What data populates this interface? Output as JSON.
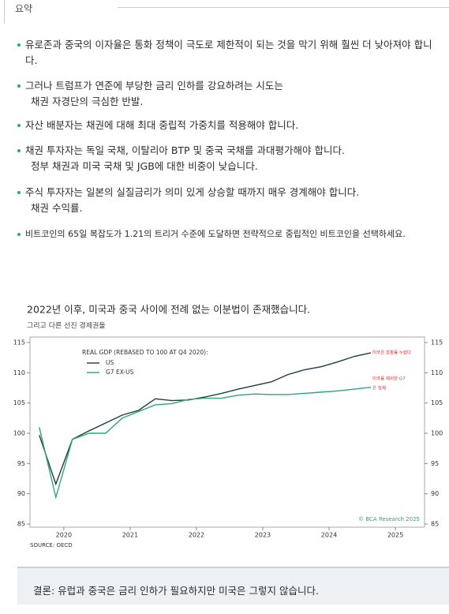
{
  "summary": {
    "heading": "요약",
    "bullets": [
      [
        "유로존과 중국의 이자율은 통화 정책이 극도로 제한적이 되는 것을 막기 위해 훨씬 더 낮아져야 합니다."
      ],
      [
        "그러나 트럼프가 연준에 부당한 금리 인하를 강요하려는 시도는",
        "채권 자경단의 극심한 반발."
      ],
      [
        "자산 배분자는 채권에 대해 최대 중립적 가중치를 적용해야 합니다."
      ],
      [
        "채권 투자자는 독일 국채, 이탈리아 BTP 및 중국 국채를 과대평가해야 합니다.",
        "정부 채권과 미국 국채 및 JGB에 대한 비중이 낮습니다."
      ],
      [
        "주식 투자자는 일본의 실질금리가 의미 있게 상승할 때까지 매우 경계해야 합니다.",
        "채권 수익률."
      ],
      [
        "비트코인의 65일 복잡도가 1.21의 트리거 수준에 도달하면 전략적으로 중립적인 비트코인을 선택하세요."
      ]
    ]
  },
  "chart_data": {
    "type": "line",
    "title": "2022년 이후, 미국과 중국 사이에 전례 없는 이분법이 존재했습니다.",
    "subtitle": "그리고 다른 선진 경제권들",
    "legend_title": "REAL GDP (REBASED TO 100 AT Q4 2020):",
    "source": "SOURCE: OECD",
    "credit": "© BCA Research 2025",
    "annotations": [
      "미국은 호황을 누렸다",
      "미국을 제외한 G7",
      "은 정체"
    ],
    "x": [
      2020.13,
      2020.38,
      2020.63,
      2020.88,
      2021.13,
      2021.38,
      2021.63,
      2021.88,
      2022.13,
      2022.38,
      2022.63,
      2022.88,
      2023.13,
      2023.38,
      2023.63,
      2023.88,
      2024.13,
      2024.38,
      2024.63,
      2024.88,
      2025.13
    ],
    "series": [
      {
        "name": "US",
        "color": "#1e3d3b",
        "values": [
          99.7,
          91.6,
          99,
          100.4,
          101.7,
          103,
          103.8,
          105.7,
          105.4,
          105.5,
          106,
          106.6,
          107.3,
          107.9,
          108.5,
          109.7,
          110.5,
          111,
          111.8,
          112.7,
          113.3
        ]
      },
      {
        "name": "G7 EX-US",
        "color": "#2fa57c",
        "values": [
          101,
          89.4,
          99,
          100,
          100,
          102.5,
          103.6,
          104.7,
          104.9,
          105.6,
          105.8,
          105.8,
          106.3,
          106.5,
          106.4,
          106.4,
          106.6,
          106.8,
          107,
          107.3,
          107.6
        ]
      }
    ],
    "xlim": [
      2019.99,
      2025.94
    ],
    "xticks": [
      {
        "value": 2020.5,
        "label": "2020"
      },
      {
        "value": 2021.5,
        "label": "2021"
      },
      {
        "value": 2022.5,
        "label": "2022"
      },
      {
        "value": 2023.5,
        "label": "2023"
      },
      {
        "value": 2024.5,
        "label": "2024"
      },
      {
        "value": 2025.5,
        "label": "2025"
      }
    ],
    "ylim": [
      85,
      115
    ],
    "yticks": [
      85,
      90,
      95,
      100,
      105,
      110,
      115
    ]
  },
  "conclusion": "결론: 유럽과 중국은 금리 인하가 필요하지만 미국은 그렇지 않습니다."
}
